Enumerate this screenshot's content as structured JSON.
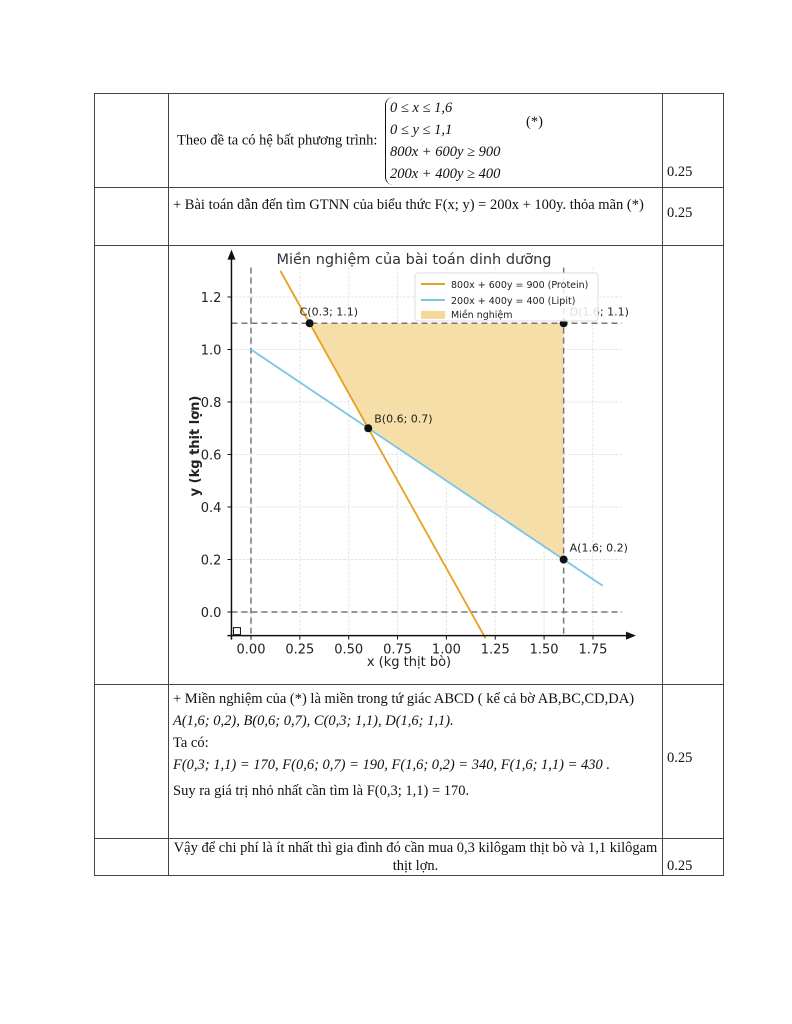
{
  "rows": [
    {
      "intro": "Theo đề ta có hệ bất phương trình:",
      "system": [
        "0 ≤ x ≤ 1,6",
        "0 ≤ y ≤ 1,1",
        "800x + 600y ≥ 900",
        "200x + 400y ≥ 400"
      ],
      "tag": "(*)",
      "score": "0.25"
    },
    {
      "text": "+ Bài toán dẫn đến tìm GTNN của biểu thức  F(x; y) = 200x + 100y.  thỏa mãn (*)",
      "score": "0.25"
    },
    {
      "score": ""
    },
    {
      "lines": [
        "+ Miền nghiệm của (*) là miền trong tứ giác ABCD ( kể cả bờ AB,BC,CD,DA)",
        "A(1,6; 0,2), B(0,6; 0,7), C(0,3; 1,1), D(1,6; 1,1).",
        "Ta có:",
        "F(0,3; 1,1) = 170, F(0,6; 0,7) = 190, F(1,6; 0,2) = 340, F(1,6; 1,1) = 430 .",
        "Suy ra giá trị nhỏ nhất cần tìm là F(0,3; 1,1) = 170."
      ],
      "score": "0.25"
    },
    {
      "text": "Vậy để chi phí là ít nhất thì gia đình đó cần mua 0,3 kilôgam thịt bò và 1,1 kilôgam thịt lợn.",
      "score": "0.25"
    }
  ],
  "chart_data": {
    "type": "line",
    "title": "Miền nghiệm của bài toán dinh dưỡng",
    "xlabel": "x (kg thịt bò)",
    "ylabel": "y (kg thịt lợn)",
    "xlim": [
      -0.1,
      1.95
    ],
    "ylim": [
      -0.09,
      1.35
    ],
    "xticks": [
      "0.00",
      "0.25",
      "0.50",
      "0.75",
      "1.00",
      "1.25",
      "1.50",
      "1.75"
    ],
    "xtick_values": [
      0,
      0.25,
      0.5,
      0.75,
      1,
      1.25,
      1.5,
      1.75
    ],
    "yticks": [
      "0.0",
      "0.2",
      "0.4",
      "0.6",
      "0.8",
      "1.0",
      "1.2"
    ],
    "ytick_values": [
      0,
      0.2,
      0.4,
      0.6,
      0.8,
      1.0,
      1.2
    ],
    "grid": true,
    "legend_position": "top-right",
    "series": [
      {
        "name": "800x + 600y = 900  (Protein)",
        "color": "#e8a020",
        "x": [
          0.15,
          1.2
        ],
        "y": [
          1.3,
          -0.1
        ]
      },
      {
        "name": "200x + 400y = 400  (Lipit)",
        "color": "#7cc4e8",
        "x": [
          0,
          1.8
        ],
        "y": [
          1.0,
          0.1
        ]
      }
    ],
    "region": {
      "name": "Miền nghiệm",
      "color": "#f5d89a",
      "vertices": [
        [
          1.6,
          0.2
        ],
        [
          0.6,
          0.7
        ],
        [
          0.3,
          1.1
        ],
        [
          1.6,
          1.1
        ]
      ]
    },
    "dashed_lines": {
      "x": [
        0,
        1.6
      ],
      "y": [
        0,
        1.1
      ]
    },
    "points": [
      {
        "label": "A(1.6; 0.2)",
        "x": 1.6,
        "y": 0.2
      },
      {
        "label": "B(0.6; 0.7)",
        "x": 0.6,
        "y": 0.7
      },
      {
        "label": "C(0.3; 1.1)",
        "x": 0.3,
        "y": 1.1
      },
      {
        "label": "D(1.6; 1.1)",
        "x": 1.6,
        "y": 1.1
      }
    ]
  }
}
